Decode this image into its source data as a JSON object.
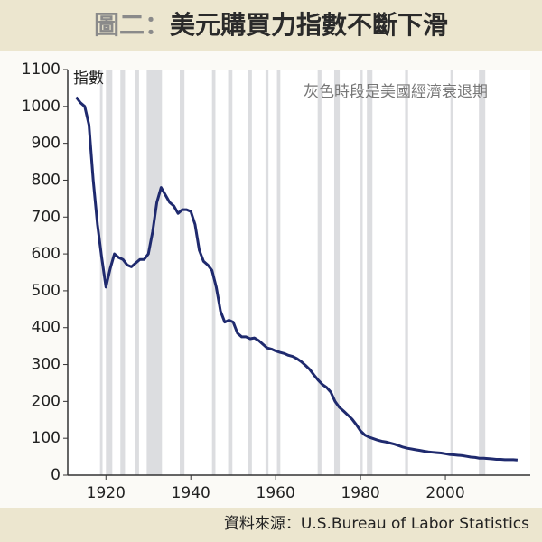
{
  "chart_data": {
    "type": "line",
    "title_label": "圖二：",
    "title": "美元購買力指數不斷下滑",
    "y_label": "指數",
    "annotation": "灰色時段是美國經濟衰退期",
    "source": "資料來源：U.S.Bureau of Labor Statistics",
    "x": [
      1913,
      1914,
      1915,
      1916,
      1917,
      1918,
      1919,
      1920,
      1921,
      1922,
      1923,
      1924,
      1925,
      1926,
      1927,
      1928,
      1929,
      1930,
      1931,
      1932,
      1933,
      1934,
      1935,
      1936,
      1937,
      1938,
      1939,
      1940,
      1941,
      1942,
      1943,
      1944,
      1945,
      1946,
      1947,
      1948,
      1949,
      1950,
      1951,
      1952,
      1953,
      1954,
      1955,
      1956,
      1957,
      1958,
      1959,
      1960,
      1961,
      1962,
      1963,
      1964,
      1965,
      1966,
      1967,
      1968,
      1969,
      1970,
      1971,
      1972,
      1973,
      1974,
      1975,
      1976,
      1977,
      1978,
      1979,
      1980,
      1981,
      1982,
      1983,
      1984,
      1985,
      1986,
      1987,
      1988,
      1989,
      1990,
      1991,
      1992,
      1993,
      1994,
      1995,
      1996,
      1997,
      1998,
      1999,
      2000,
      2001,
      2002,
      2003,
      2004,
      2005,
      2006,
      2007,
      2008,
      2009,
      2010,
      2011,
      2012,
      2013,
      2014,
      2015,
      2016,
      2017
    ],
    "series": [
      {
        "name": "指數",
        "color": "#1f2a6e",
        "values": [
          1025,
          1010,
          1000,
          950,
          800,
          680,
          590,
          510,
          560,
          600,
          590,
          585,
          570,
          565,
          575,
          585,
          585,
          600,
          660,
          740,
          780,
          760,
          740,
          730,
          710,
          720,
          720,
          715,
          680,
          610,
          580,
          570,
          555,
          510,
          445,
          415,
          420,
          415,
          385,
          375,
          375,
          370,
          372,
          365,
          355,
          345,
          342,
          337,
          333,
          330,
          325,
          322,
          316,
          308,
          298,
          287,
          272,
          258,
          246,
          238,
          225,
          200,
          184,
          174,
          163,
          152,
          137,
          120,
          109,
          103,
          99,
          95,
          92,
          90,
          87,
          84,
          80,
          76,
          73,
          71,
          69,
          67,
          65,
          63,
          62,
          61,
          60,
          58,
          56,
          55,
          54,
          53,
          51,
          49,
          48,
          46,
          46,
          45,
          44,
          43,
          43,
          42,
          42,
          42,
          41
        ]
      }
    ],
    "shaded_periods": [
      [
        1918.6,
        1919.2
      ],
      [
        1920,
        1921.5
      ],
      [
        1923.4,
        1924.5
      ],
      [
        1926.8,
        1927.8
      ],
      [
        1929.6,
        1933.2
      ],
      [
        1937.4,
        1938.5
      ],
      [
        1945,
        1945.8
      ],
      [
        1948.8,
        1949.8
      ],
      [
        1953.5,
        1954.4
      ],
      [
        1957.6,
        1958.3
      ],
      [
        1960.3,
        1961.1
      ],
      [
        1969.9,
        1970.8
      ],
      [
        1973.8,
        1975.1
      ],
      [
        1980,
        1980.5
      ],
      [
        1981.5,
        1982.8
      ],
      [
        1990.5,
        1991.2
      ],
      [
        2001.2,
        2001.8
      ],
      [
        2007.9,
        2009.4
      ]
    ],
    "shade_color": "#dcdde0",
    "xlim": [
      1911,
      2020
    ],
    "ylim": [
      0,
      1100
    ],
    "xticks": [
      1920,
      1940,
      1960,
      1980,
      2000
    ],
    "yticks": [
      0,
      100,
      200,
      300,
      400,
      500,
      600,
      700,
      800,
      900,
      1000,
      1100
    ]
  }
}
